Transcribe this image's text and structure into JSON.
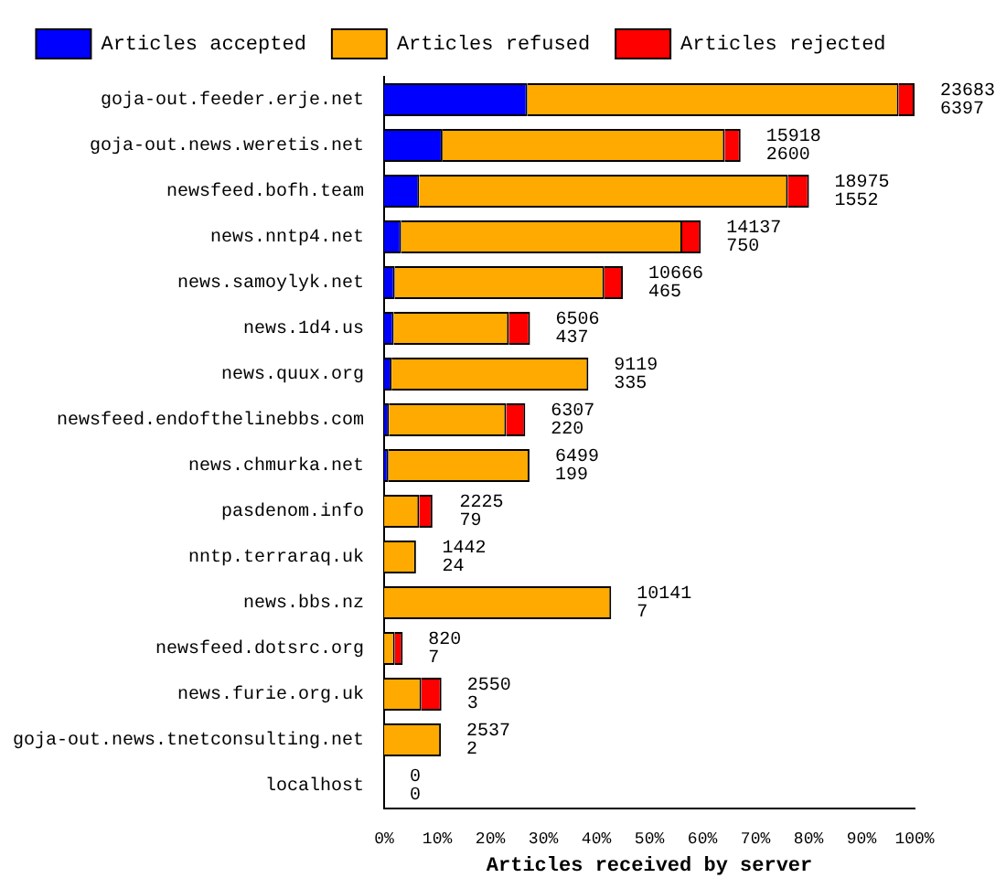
{
  "chart_data": {
    "type": "bar",
    "orientation": "horizontal",
    "stacked": true,
    "xlabel": "Articles received by server",
    "categories": [
      "goja-out.feeder.erje.net",
      "goja-out.news.weretis.net",
      "newsfeed.bofh.team",
      "news.nntp4.net",
      "news.samoylyk.net",
      "news.1d4.us",
      "news.quux.org",
      "newsfeed.endofthelinebbs.com",
      "news.chmurka.net",
      "pasdenom.info",
      "nntp.terraraq.uk",
      "news.bbs.nz",
      "newsfeed.dotsrc.org",
      "news.furie.org.uk",
      "goja-out.news.tnetconsulting.net",
      "localhost"
    ],
    "series": [
      {
        "name": "Articles accepted",
        "color": "#0000ff",
        "values": [
          27.0,
          11.0,
          6.6,
          3.2,
          2.0,
          1.8,
          1.4,
          0.9,
          0.8,
          null,
          null,
          0,
          0,
          0,
          0,
          0
        ]
      },
      {
        "name": "Articles refused",
        "color": "#ffaa00",
        "values": [
          70,
          53.2,
          69.5,
          53,
          39.5,
          21.7,
          37.1,
          22.1,
          26.6,
          6.6,
          6.0,
          42.8,
          2,
          7,
          10.7,
          0
        ]
      },
      {
        "name": "Articles rejected",
        "color": "#ff0000",
        "values": [
          3,
          3,
          4,
          3.5,
          3.5,
          4,
          0,
          3.6,
          0,
          2.5,
          0,
          0,
          1.5,
          3.8,
          0,
          0
        ]
      }
    ],
    "xlim": [
      0,
      100
    ],
    "xticks": [
      {
        "value": 0,
        "label": "0%"
      },
      {
        "value": 10,
        "label": "10%"
      },
      {
        "value": 20,
        "label": "20%"
      },
      {
        "value": 30,
        "label": "30%"
      },
      {
        "value": 40,
        "label": "40%"
      },
      {
        "value": 50,
        "label": "50%"
      },
      {
        "value": 60,
        "label": "60%"
      },
      {
        "value": 70,
        "label": "70%"
      },
      {
        "value": 80,
        "label": "80%"
      },
      {
        "value": 90,
        "label": "90%"
      },
      {
        "value": 100,
        "label": "100%"
      }
    ],
    "grid": false,
    "legend": "top",
    "annotations": [
      {
        "text": "23683\n6397",
        "x": 100,
        "y": "goja-out.feeder.erje.net"
      },
      {
        "text": "15918\n2600",
        "x": 67.2,
        "y": "goja-out.news.weretis.net"
      },
      {
        "text": "18975\n1552",
        "x": 80.1,
        "y": "newsfeed.bofh.team"
      },
      {
        "text": "14137\n750",
        "x": 59.7,
        "y": "news.nntp4.net"
      },
      {
        "text": "10666\n465",
        "x": 45,
        "y": "news.samoylyk.net"
      },
      {
        "text": "6506\n437",
        "x": 27.5,
        "y": "news.1d4.us"
      },
      {
        "text": "9119\n335",
        "x": 38.5,
        "y": "news.quux.org"
      },
      {
        "text": "6307\n220",
        "x": 26.6,
        "y": "newsfeed.endofthelinebbs.com"
      },
      {
        "text": "6499\n199",
        "x": 27.4,
        "y": "news.chmurka.net"
      },
      {
        "text": "2225\n79",
        "x": 9.4,
        "y": "pasdenom.info"
      },
      {
        "text": "1442\n24",
        "x": 6.1,
        "y": "nntp.terraraq.uk"
      },
      {
        "text": "10141\n7",
        "x": 42.8,
        "y": "news.bbs.nz"
      },
      {
        "text": "820\n7",
        "x": 3.5,
        "y": "newsfeed.dotsrc.org"
      },
      {
        "text": "2550\n3",
        "x": 10.8,
        "y": "news.furie.org.uk"
      },
      {
        "text": "2537\n2",
        "x": 10.7,
        "y": "goja-out.news.tnetconsulting.net"
      },
      {
        "text": "0\n0",
        "x": 0,
        "y": "localhost"
      }
    ]
  }
}
